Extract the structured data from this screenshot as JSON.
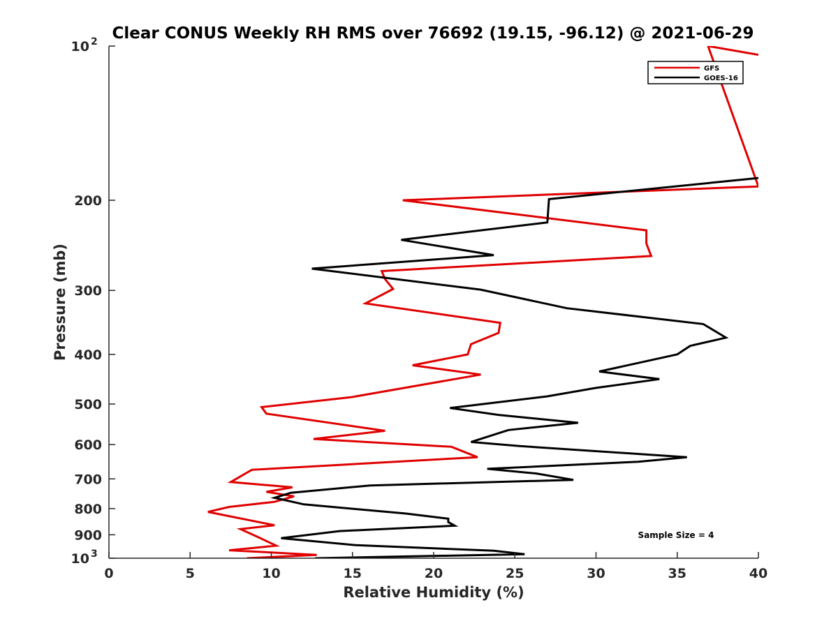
{
  "chart_data": {
    "type": "line",
    "title": "Clear CONUS Weekly RH RMS over 76692 (19.15, -96.12) @ 2021-06-29",
    "xlabel": "Relative Humidity (%)",
    "ylabel": "Pressure (mb)",
    "xlim": [
      0,
      40
    ],
    "ylim": [
      100,
      1000
    ],
    "yscale": "log",
    "y_reversed": true,
    "grid": false,
    "legend_position": "top-right",
    "x_ticks": [
      "0",
      "5",
      "10",
      "15",
      "20",
      "25",
      "30",
      "35",
      "40"
    ],
    "y_ticks": [
      {
        "value": 100,
        "base": "10",
        "exp": "2"
      },
      {
        "value": 200,
        "label": "200"
      },
      {
        "value": 300,
        "label": "300"
      },
      {
        "value": 400,
        "label": "400"
      },
      {
        "value": 500,
        "label": "500"
      },
      {
        "value": 600,
        "label": "600"
      },
      {
        "value": 700,
        "label": "700"
      },
      {
        "value": 800,
        "label": "800"
      },
      {
        "value": 900,
        "label": "900"
      },
      {
        "value": 1000,
        "base": "10",
        "exp": "3"
      }
    ],
    "annotation": "Sample Size = 4",
    "series": [
      {
        "name": "GFS",
        "color": "#e00000",
        "points": [
          [
            40.0,
            104
          ],
          [
            36.9,
            100
          ],
          [
            40.0,
            188
          ],
          [
            18.1,
            200
          ],
          [
            33.1,
            229
          ],
          [
            33.1,
            243
          ],
          [
            33.4,
            257
          ],
          [
            16.8,
            275
          ],
          [
            17.0,
            285
          ],
          [
            17.5,
            298
          ],
          [
            15.8,
            318
          ],
          [
            24.1,
            347
          ],
          [
            24.0,
            363
          ],
          [
            22.3,
            382
          ],
          [
            22.1,
            400
          ],
          [
            18.7,
            420
          ],
          [
            22.9,
            438
          ],
          [
            14.9,
            485
          ],
          [
            9.4,
            507
          ],
          [
            9.7,
            522
          ],
          [
            17.0,
            564
          ],
          [
            12.6,
            585
          ],
          [
            21.1,
            606
          ],
          [
            22.7,
            635
          ],
          [
            8.8,
            672
          ],
          [
            7.5,
            710
          ],
          [
            11.3,
            727
          ],
          [
            9.7,
            742
          ],
          [
            11.4,
            757
          ],
          [
            10.2,
            776
          ],
          [
            7.4,
            794
          ],
          [
            6.1,
            812
          ],
          [
            10.2,
            862
          ],
          [
            8.1,
            877
          ],
          [
            9.2,
            910
          ],
          [
            10.3,
            945
          ],
          [
            7.4,
            965
          ],
          [
            12.8,
            985
          ],
          [
            8.5,
            1000
          ]
        ]
      },
      {
        "name": "GOES-16",
        "color": "#000000",
        "points": [
          [
            40.0,
            181
          ],
          [
            27.1,
            199
          ],
          [
            27.0,
            221
          ],
          [
            18.0,
            239
          ],
          [
            23.7,
            256
          ],
          [
            12.5,
            272
          ],
          [
            22.9,
            299
          ],
          [
            28.2,
            325
          ],
          [
            36.6,
            349
          ],
          [
            38.0,
            371
          ],
          [
            35.8,
            385
          ],
          [
            35.0,
            400
          ],
          [
            30.2,
            432
          ],
          [
            33.9,
            447
          ],
          [
            30.0,
            465
          ],
          [
            27.0,
            483
          ],
          [
            21.0,
            509
          ],
          [
            24.0,
            525
          ],
          [
            28.9,
            544
          ],
          [
            24.6,
            562
          ],
          [
            22.3,
            593
          ],
          [
            25.3,
            604
          ],
          [
            35.6,
            635
          ],
          [
            32.6,
            648
          ],
          [
            23.3,
            669
          ],
          [
            26.3,
            683
          ],
          [
            28.6,
            703
          ],
          [
            16.1,
            721
          ],
          [
            11.2,
            745
          ],
          [
            10.2,
            762
          ],
          [
            12.0,
            785
          ],
          [
            18.3,
            818
          ],
          [
            20.9,
            837
          ],
          [
            20.9,
            850
          ],
          [
            21.3,
            864
          ],
          [
            14.2,
            885
          ],
          [
            10.6,
            914
          ],
          [
            15.2,
            943
          ],
          [
            23.7,
            967
          ],
          [
            25.6,
            982
          ],
          [
            12.7,
            1000
          ]
        ]
      }
    ]
  }
}
